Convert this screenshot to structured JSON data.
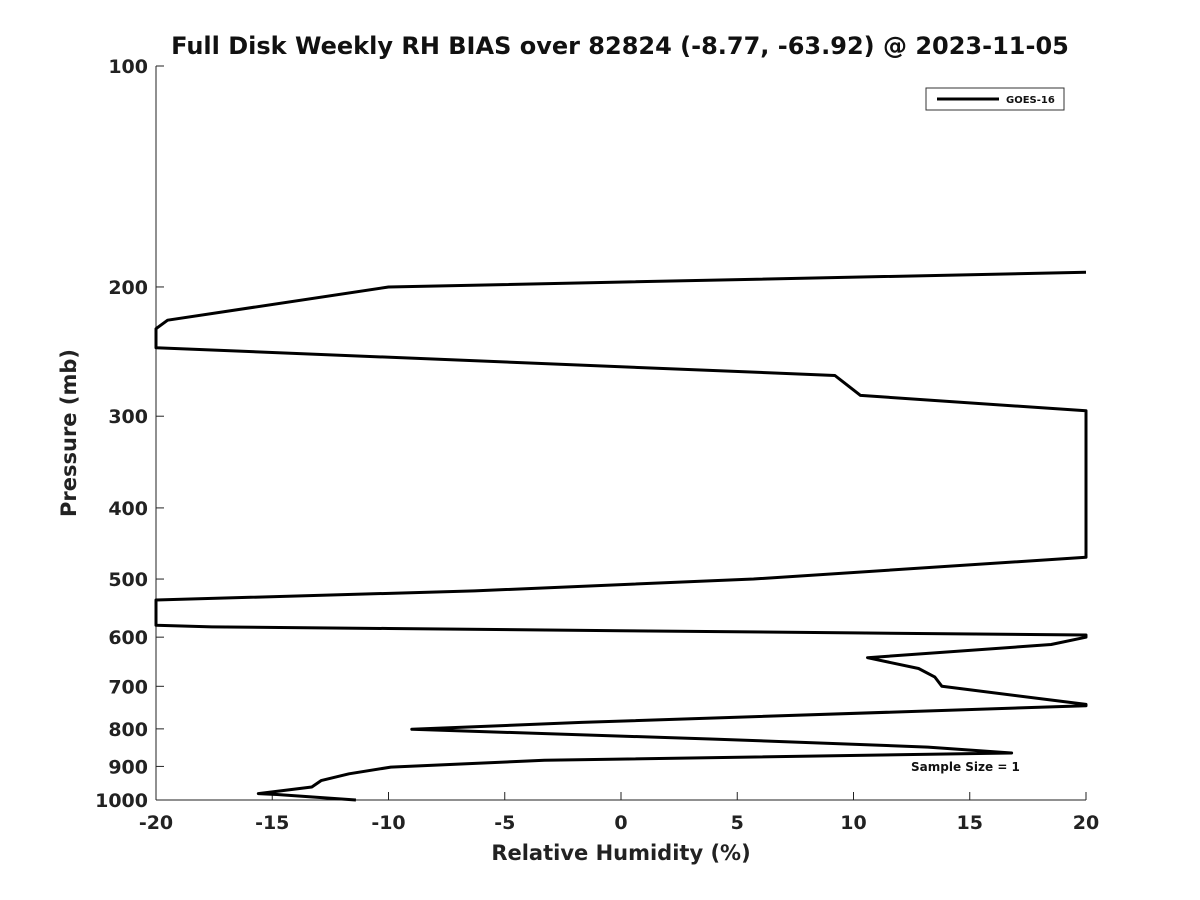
{
  "chart_data": {
    "type": "line",
    "title": "Full Disk Weekly RH BIAS over 82824 (-8.77, -63.92) @ 2023-11-05",
    "xlabel": "Relative Humidity (%)",
    "ylabel": "Pressure (mb)",
    "xlim": [
      -20,
      20
    ],
    "ylim": [
      100,
      1000
    ],
    "yscale": "log",
    "y_reversed": true,
    "x_ticks": [
      "-20",
      "-15",
      "-10",
      "-5",
      "0",
      "5",
      "10",
      "15",
      "20"
    ],
    "y_ticks": [
      "100",
      "200",
      "300",
      "400",
      "500",
      "600",
      "700",
      "800",
      "900",
      "1000"
    ],
    "grid": false,
    "legend": {
      "position": "top-right",
      "entries": [
        "GOES-16"
      ]
    },
    "annotation": "Sample Size = 1",
    "series": [
      {
        "name": "GOES-16",
        "color": "#000000",
        "x": [
          20,
          -10,
          -19.5,
          -20,
          -20,
          9.2,
          10.3,
          20,
          20,
          5.7,
          -6.3,
          -20,
          -20,
          -17.6,
          -10,
          0,
          10,
          20,
          20,
          18.5,
          10.6,
          12.8,
          13.5,
          13.8,
          20,
          20,
          -1.7,
          -9,
          4,
          13.2,
          16.8,
          -3.3,
          -9.9,
          -11.7,
          -12.9,
          -13.3,
          -15.6,
          -14.8,
          -11.4
        ],
        "y": [
          191,
          200,
          222,
          228,
          242,
          264,
          281,
          295,
          467,
          500,
          519,
          534,
          578,
          581,
          584,
          588,
          592,
          596,
          600,
          614,
          640,
          662,
          680,
          700,
          741,
          744,
          784,
          801,
          826,
          847,
          863,
          883,
          902,
          921,
          941,
          960,
          980,
          983,
          1000
        ]
      }
    ]
  }
}
